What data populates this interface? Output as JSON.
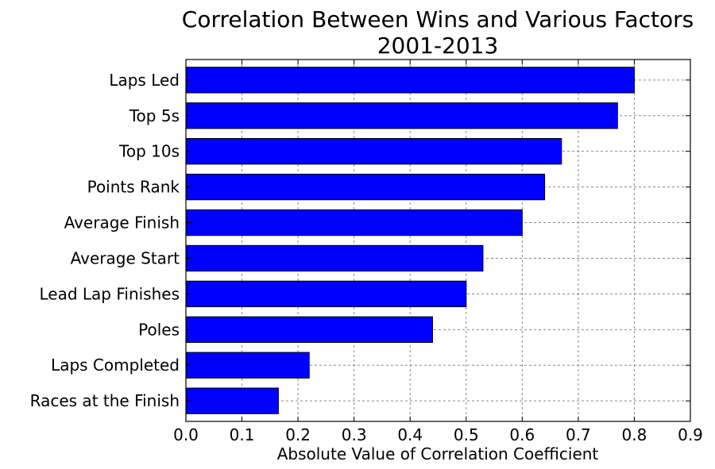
{
  "chart_data": {
    "type": "bar",
    "orientation": "horizontal",
    "title_lines": [
      "Correlation Between Wins and Various Factors",
      "2001-2013"
    ],
    "xlabel": "Absolute Value of Correlation Coefficient",
    "ylabel": "",
    "xlim": [
      0.0,
      0.9
    ],
    "xticks": [
      "0.0",
      "0.1",
      "0.2",
      "0.3",
      "0.4",
      "0.5",
      "0.6",
      "0.7",
      "0.8",
      "0.9"
    ],
    "grid": true,
    "bar_color": "#0000ff",
    "categories": [
      "Laps Led",
      "Top 5s",
      "Top 10s",
      "Points Rank",
      "Average Finish",
      "Average Start",
      "Lead Lap Finishes",
      "Poles",
      "Laps Completed",
      "Races at the Finish"
    ],
    "values": [
      0.8,
      0.77,
      0.67,
      0.64,
      0.6,
      0.53,
      0.5,
      0.44,
      0.22,
      0.165
    ]
  }
}
